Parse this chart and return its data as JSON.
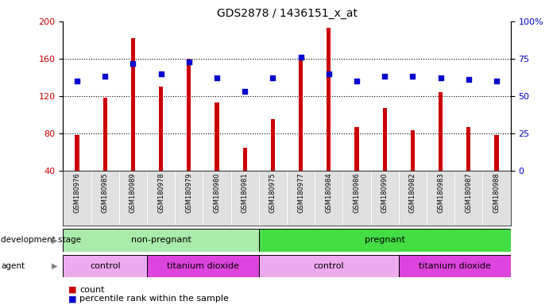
{
  "title": "GDS2878 / 1436151_x_at",
  "samples": [
    "GSM180976",
    "GSM180985",
    "GSM180989",
    "GSM180978",
    "GSM180979",
    "GSM180980",
    "GSM180981",
    "GSM180975",
    "GSM180977",
    "GSM180984",
    "GSM180986",
    "GSM180990",
    "GSM180982",
    "GSM180983",
    "GSM180987",
    "GSM180988"
  ],
  "counts": [
    78,
    118,
    182,
    130,
    160,
    113,
    65,
    95,
    164,
    193,
    87,
    107,
    83,
    124,
    87,
    78
  ],
  "percentile_ranks": [
    60,
    63,
    72,
    65,
    73,
    62,
    53,
    62,
    76,
    65,
    60,
    63,
    63,
    62,
    61,
    60
  ],
  "bar_color": "#cc0000",
  "dot_color": "#0000cc",
  "ylim_left": [
    40,
    200
  ],
  "ylim_right": [
    0,
    100
  ],
  "yticks_left": [
    40,
    80,
    120,
    160,
    200
  ],
  "yticks_right": [
    0,
    25,
    50,
    75,
    100
  ],
  "ytick_right_labels": [
    "0",
    "25",
    "50",
    "75",
    "100%"
  ],
  "dev_stage_groups": [
    {
      "label": "non-pregnant",
      "start": 0,
      "end": 7,
      "color": "#aaeaaa"
    },
    {
      "label": "pregnant",
      "start": 7,
      "end": 16,
      "color": "#44dd44"
    }
  ],
  "agent_groups": [
    {
      "label": "control",
      "start": 0,
      "end": 3,
      "color": "#eeaaee"
    },
    {
      "label": "titanium dioxide",
      "start": 3,
      "end": 7,
      "color": "#dd44dd"
    },
    {
      "label": "control",
      "start": 7,
      "end": 12,
      "color": "#eeaaee"
    },
    {
      "label": "titanium dioxide",
      "start": 12,
      "end": 16,
      "color": "#dd44dd"
    }
  ],
  "tick_label_color_left": "#cc0000",
  "tick_label_color_right": "#0000cc",
  "bar_width": 0.15,
  "legend_count_label": "count",
  "legend_percentile_label": "percentile rank within the sample",
  "gridline_ticks": [
    80,
    120,
    160
  ]
}
